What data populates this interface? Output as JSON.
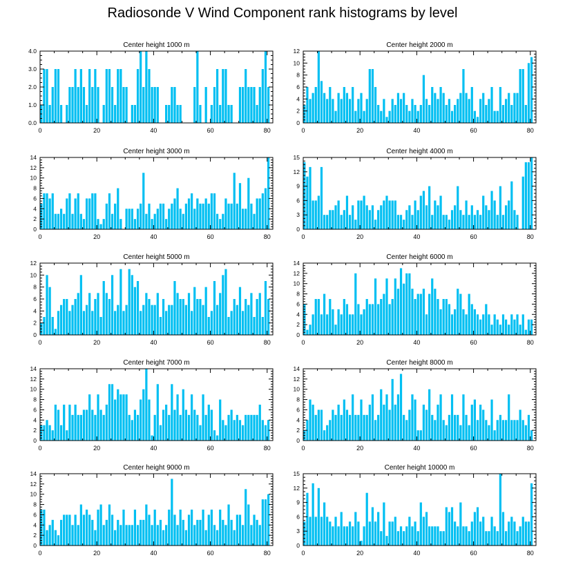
{
  "title": "Radiosonde V Wind Component rank histograms by level",
  "bar_color": "#00bff2",
  "chart_data": [
    {
      "type": "bar",
      "title": "Center height 1000 m",
      "xlim": [
        0,
        82
      ],
      "ylim": [
        0,
        4
      ],
      "yticks": [
        0,
        1,
        2,
        3,
        4
      ],
      "ytick_labels": [
        "0.0",
        "1.0",
        "2.0",
        "3.0",
        "4.0"
      ],
      "xticks": [
        0,
        20,
        40,
        60,
        80
      ],
      "values": [
        1,
        3,
        3,
        1,
        2,
        3,
        3,
        1,
        0,
        1,
        2,
        2,
        3,
        2,
        3,
        2,
        1,
        3,
        2,
        3,
        2,
        0,
        1,
        3,
        3,
        2,
        1,
        3,
        3,
        2,
        2,
        0,
        1,
        1,
        3,
        4,
        2,
        4,
        3,
        2,
        2,
        2,
        0,
        0,
        1,
        1,
        2,
        2,
        1,
        1,
        0,
        0,
        0,
        0,
        2,
        4,
        1,
        0,
        2,
        0,
        1,
        2,
        3,
        1,
        3,
        3,
        1,
        1,
        0,
        0,
        2,
        2,
        3,
        2,
        2,
        2,
        1,
        2,
        3,
        4,
        2
      ]
    },
    {
      "type": "bar",
      "title": "Center height 2000 m",
      "xlim": [
        0,
        82
      ],
      "ylim": [
        0,
        12
      ],
      "yticks": [
        0,
        2,
        4,
        6,
        8,
        10,
        12
      ],
      "ytick_labels": [
        "0",
        "2",
        "4",
        "6",
        "8",
        "10",
        "12"
      ],
      "xticks": [
        0,
        20,
        40,
        60,
        80
      ],
      "values": [
        3,
        6,
        4,
        5,
        6,
        12,
        7,
        5,
        4,
        6,
        4,
        2,
        5,
        4,
        6,
        5,
        4,
        6,
        2,
        4,
        5,
        2,
        4,
        9,
        9,
        6,
        3,
        2,
        4,
        1,
        2,
        4,
        3,
        5,
        4,
        5,
        3,
        2,
        4,
        3,
        2,
        3,
        8,
        4,
        3,
        6,
        5,
        4,
        6,
        5,
        3,
        4,
        2,
        3,
        4,
        5,
        9,
        5,
        4,
        6,
        2,
        1,
        4,
        5,
        3,
        4,
        6,
        2,
        2,
        6,
        3,
        4,
        5,
        3,
        5,
        5,
        9,
        9,
        3,
        10,
        11
      ]
    },
    {
      "type": "bar",
      "title": "Center height 3000 m",
      "xlim": [
        0,
        82
      ],
      "ylim": [
        0,
        14
      ],
      "yticks": [
        0,
        2,
        4,
        6,
        8,
        10,
        12,
        14
      ],
      "ytick_labels": [
        "0",
        "2",
        "4",
        "6",
        "8",
        "10",
        "12",
        "14"
      ],
      "xticks": [
        0,
        20,
        40,
        60,
        80
      ],
      "values": [
        5,
        7,
        7,
        6,
        7,
        3,
        3,
        4,
        3,
        6,
        7,
        3,
        6,
        7,
        3,
        2,
        6,
        6,
        7,
        7,
        2,
        1,
        2,
        5,
        7,
        3,
        5,
        8,
        2,
        0,
        4,
        4,
        4,
        2,
        4,
        5,
        11,
        3,
        5,
        2,
        3,
        4,
        5,
        5,
        2,
        4,
        5,
        6,
        8,
        4,
        3,
        5,
        6,
        7,
        4,
        6,
        5,
        5,
        6,
        5,
        7,
        7,
        3,
        2,
        3,
        6,
        5,
        5,
        11,
        5,
        9,
        4,
        4,
        10,
        5,
        3,
        6,
        6,
        7,
        8,
        14
      ]
    },
    {
      "type": "bar",
      "title": "Center height 4000 m",
      "xlim": [
        0,
        82
      ],
      "ylim": [
        0,
        15
      ],
      "yticks": [
        0,
        3,
        6,
        9,
        12,
        15
      ],
      "ytick_labels": [
        "0",
        "3",
        "6",
        "9",
        "12",
        "15"
      ],
      "xticks": [
        0,
        20,
        40,
        60,
        80
      ],
      "values": [
        14,
        11,
        13,
        6,
        6,
        7,
        13,
        3,
        3,
        4,
        4,
        5,
        6,
        3,
        4,
        7,
        3,
        5,
        2,
        6,
        6,
        7,
        5,
        4,
        5,
        2,
        4,
        5,
        6,
        7,
        6,
        6,
        6,
        3,
        3,
        2,
        4,
        5,
        3,
        6,
        4,
        7,
        8,
        5,
        9,
        3,
        6,
        5,
        7,
        3,
        3,
        2,
        4,
        5,
        9,
        4,
        3,
        6,
        3,
        5,
        3,
        4,
        3,
        7,
        5,
        4,
        8,
        6,
        3,
        9,
        3,
        5,
        6,
        10,
        4,
        3,
        0,
        11,
        14,
        14,
        15
      ]
    },
    {
      "type": "bar",
      "title": "Center height 5000 m",
      "xlim": [
        0,
        82
      ],
      "ylim": [
        0,
        12
      ],
      "yticks": [
        0,
        2,
        4,
        6,
        8,
        10,
        12
      ],
      "ytick_labels": [
        "0",
        "2",
        "4",
        "6",
        "8",
        "10",
        "12"
      ],
      "xticks": [
        0,
        20,
        40,
        60,
        80
      ],
      "values": [
        2,
        3,
        10,
        8,
        3,
        1,
        4,
        5,
        6,
        6,
        4,
        5,
        6,
        7,
        10,
        4,
        5,
        7,
        4,
        6,
        7,
        3,
        9,
        7,
        6,
        10,
        4,
        5,
        11,
        4,
        5,
        11,
        10,
        8,
        9,
        4,
        5,
        7,
        6,
        5,
        5,
        7,
        3,
        6,
        4,
        5,
        5,
        9,
        7,
        6,
        6,
        5,
        7,
        4,
        8,
        6,
        6,
        5,
        8,
        3,
        4,
        9,
        5,
        7,
        10,
        11,
        3,
        4,
        6,
        5,
        8,
        4,
        6,
        5,
        7,
        3,
        6,
        7,
        3,
        9,
        6
      ]
    },
    {
      "type": "bar",
      "title": "Center height 6000 m",
      "xlim": [
        0,
        82
      ],
      "ylim": [
        0,
        14
      ],
      "yticks": [
        0,
        2,
        4,
        6,
        8,
        10,
        12,
        14
      ],
      "ytick_labels": [
        "0",
        "2",
        "4",
        "6",
        "8",
        "10",
        "12",
        "14"
      ],
      "xticks": [
        0,
        20,
        40,
        60,
        80
      ],
      "values": [
        6,
        1,
        2,
        4,
        7,
        7,
        4,
        8,
        4,
        7,
        5,
        2,
        5,
        4,
        7,
        6,
        4,
        4,
        12,
        6,
        4,
        5,
        7,
        6,
        6,
        11,
        6,
        7,
        8,
        11,
        6,
        7,
        11,
        9,
        13,
        10,
        12,
        12,
        9,
        7,
        8,
        8,
        9,
        4,
        8,
        11,
        9,
        7,
        5,
        7,
        7,
        6,
        4,
        5,
        9,
        8,
        5,
        4,
        8,
        6,
        5,
        4,
        3,
        4,
        6,
        4,
        2,
        4,
        3,
        2,
        4,
        3,
        2,
        4,
        3,
        4,
        2,
        4,
        1,
        3,
        3
      ]
    },
    {
      "type": "bar",
      "title": "Center height 7000 m",
      "xlim": [
        0,
        82
      ],
      "ylim": [
        0,
        14
      ],
      "yticks": [
        0,
        2,
        4,
        6,
        8,
        10,
        12,
        14
      ],
      "ytick_labels": [
        "0",
        "2",
        "4",
        "6",
        "8",
        "10",
        "12",
        "14"
      ],
      "xticks": [
        0,
        20,
        40,
        60,
        80
      ],
      "values": [
        3,
        3,
        4,
        3,
        2,
        7,
        6,
        3,
        7,
        2,
        7,
        5,
        7,
        5,
        5,
        6,
        6,
        9,
        6,
        5,
        9,
        6,
        5,
        7,
        11,
        11,
        8,
        10,
        9,
        9,
        9,
        5,
        4,
        6,
        5,
        8,
        10,
        14,
        8,
        1,
        5,
        11,
        3,
        6,
        7,
        5,
        11,
        6,
        9,
        5,
        10,
        6,
        5,
        9,
        6,
        5,
        3,
        9,
        5,
        7,
        6,
        2,
        1,
        8,
        4,
        3,
        5,
        6,
        4,
        5,
        4,
        3,
        5,
        5,
        5,
        5,
        5,
        7,
        4,
        3,
        4
      ]
    },
    {
      "type": "bar",
      "title": "Center height 8000 m",
      "xlim": [
        0,
        82
      ],
      "ylim": [
        0,
        14
      ],
      "yticks": [
        0,
        2,
        4,
        6,
        8,
        10,
        12,
        14
      ],
      "ytick_labels": [
        "0",
        "2",
        "4",
        "6",
        "8",
        "10",
        "12",
        "14"
      ],
      "xticks": [
        0,
        20,
        40,
        60,
        80
      ],
      "values": [
        2,
        4,
        8,
        7,
        5,
        6,
        6,
        2,
        3,
        4,
        6,
        5,
        7,
        5,
        8,
        6,
        5,
        9,
        5,
        5,
        8,
        5,
        5,
        7,
        9,
        4,
        5,
        10,
        7,
        9,
        6,
        12,
        7,
        9,
        13,
        5,
        4,
        6,
        9,
        8,
        2,
        2,
        7,
        6,
        10,
        5,
        4,
        7,
        9,
        4,
        3,
        5,
        9,
        5,
        5,
        3,
        9,
        5,
        3,
        7,
        8,
        4,
        7,
        6,
        4,
        3,
        8,
        2,
        4,
        5,
        4,
        4,
        9,
        4,
        4,
        4,
        6,
        4,
        3,
        5,
        2
      ]
    },
    {
      "type": "bar",
      "title": "Center height 9000 m",
      "xlim": [
        0,
        82
      ],
      "ylim": [
        0,
        14
      ],
      "yticks": [
        0,
        2,
        4,
        6,
        8,
        10,
        12,
        14
      ],
      "ytick_labels": [
        "0",
        "2",
        "4",
        "6",
        "8",
        "10",
        "12",
        "14"
      ],
      "xticks": [
        0,
        20,
        40,
        60,
        80
      ],
      "values": [
        7,
        7,
        3,
        4,
        5,
        3,
        2,
        5,
        6,
        6,
        6,
        4,
        6,
        4,
        8,
        6,
        7,
        6,
        5,
        3,
        7,
        8,
        4,
        5,
        8,
        6,
        3,
        5,
        4,
        7,
        4,
        4,
        4,
        7,
        4,
        5,
        5,
        8,
        6,
        4,
        7,
        4,
        5,
        3,
        4,
        7,
        13,
        6,
        4,
        7,
        5,
        3,
        6,
        7,
        4,
        5,
        5,
        7,
        3,
        6,
        7,
        4,
        3,
        7,
        5,
        4,
        8,
        5,
        3,
        6,
        6,
        4,
        11,
        8,
        4,
        6,
        5,
        4,
        9,
        9,
        10
      ]
    },
    {
      "type": "bar",
      "title": "Center height 10000 m",
      "xlim": [
        0,
        82
      ],
      "ylim": [
        0,
        15
      ],
      "yticks": [
        0,
        3,
        6,
        9,
        12,
        15
      ],
      "ytick_labels": [
        "0",
        "3",
        "6",
        "9",
        "12",
        "15"
      ],
      "xticks": [
        0,
        20,
        40,
        60,
        80
      ],
      "values": [
        5,
        11,
        6,
        13,
        6,
        12,
        6,
        9,
        6,
        5,
        4,
        6,
        4,
        7,
        4,
        4,
        5,
        4,
        7,
        5,
        1,
        4,
        11,
        5,
        8,
        5,
        7,
        3,
        9,
        2,
        5,
        5,
        6,
        3,
        4,
        3,
        4,
        6,
        4,
        5,
        3,
        9,
        6,
        7,
        4,
        4,
        4,
        4,
        3,
        3,
        8,
        7,
        8,
        5,
        4,
        9,
        4,
        4,
        3,
        5,
        7,
        8,
        5,
        6,
        3,
        3,
        6,
        4,
        3,
        15,
        7,
        3,
        5,
        6,
        5,
        3,
        4,
        6,
        5,
        5,
        13
      ]
    }
  ]
}
